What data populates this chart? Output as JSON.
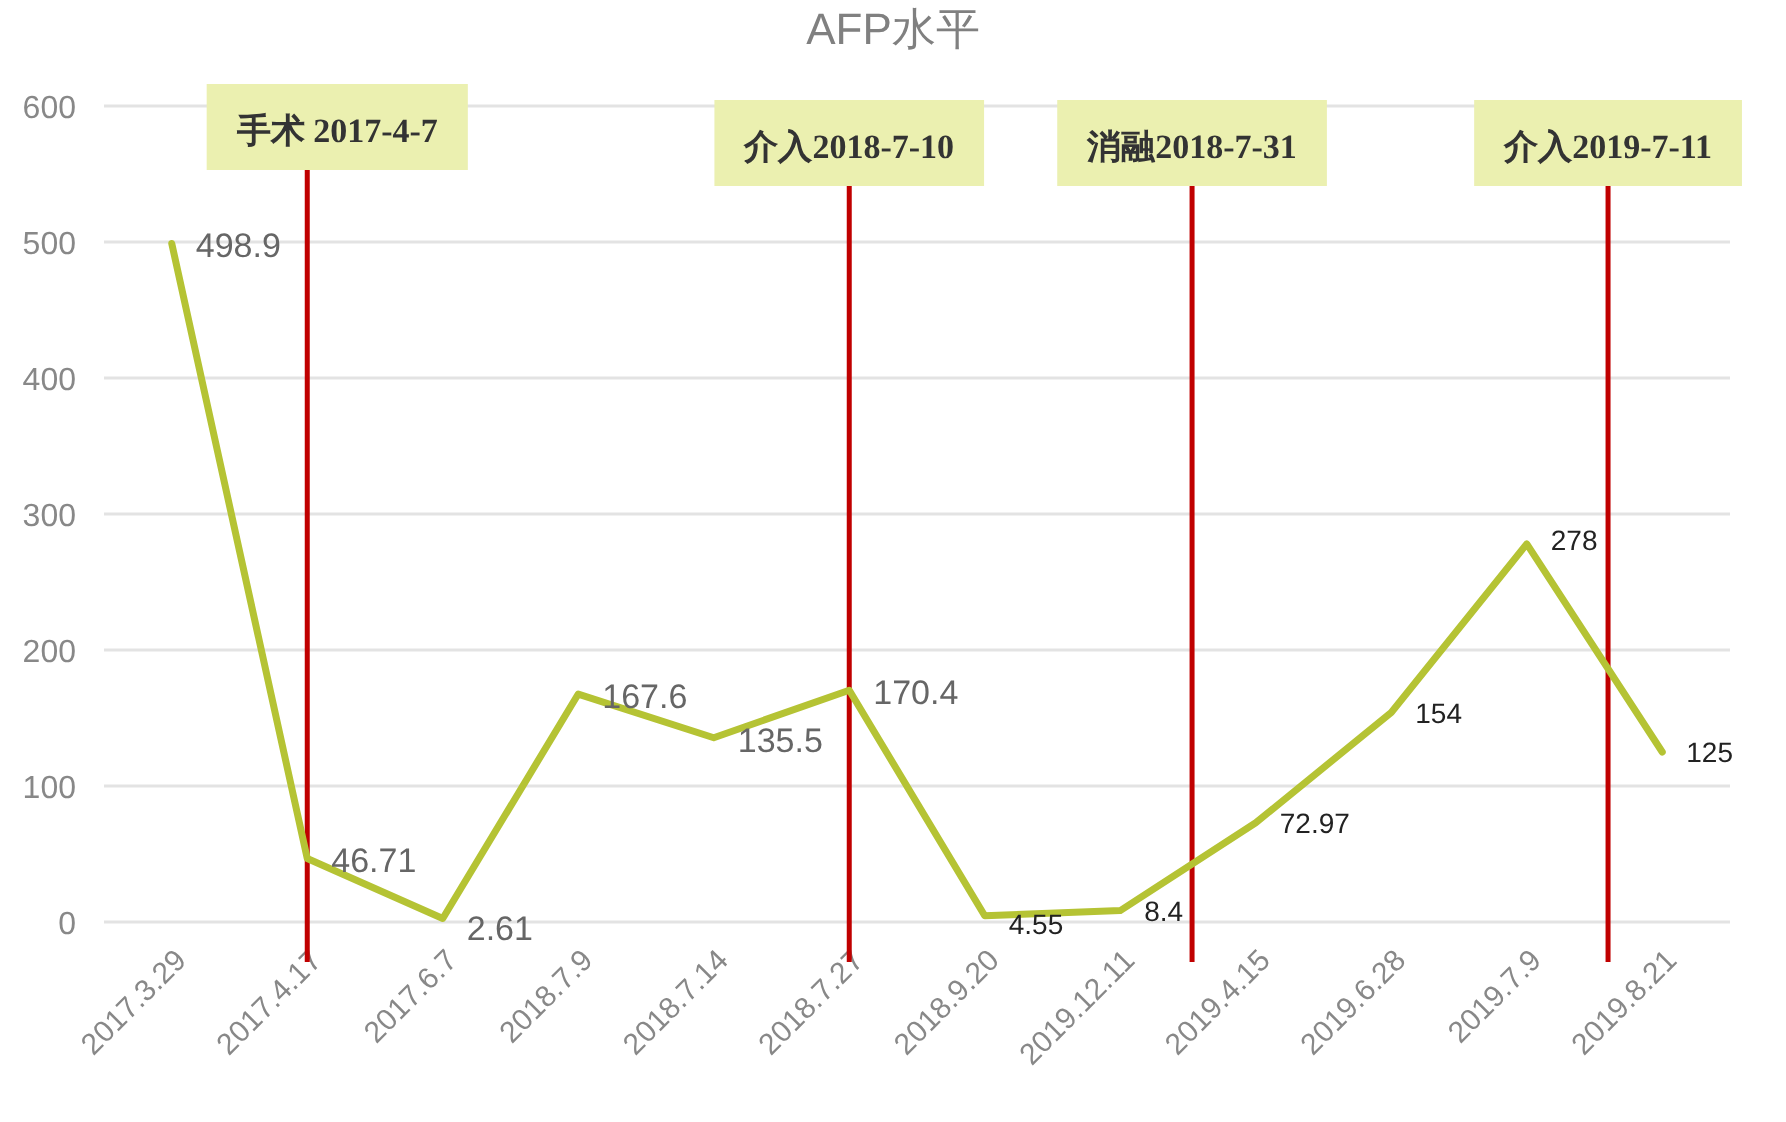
{
  "chart_data": {
    "type": "line",
    "title": "AFP水平",
    "categories": [
      "2017.3.29",
      "2017.4.17",
      "2017.6.7",
      "2018.7.9",
      "2018.7.14",
      "2018.7.27",
      "2018.9.20",
      "2019.12.11",
      "2019.4.15",
      "2019.6.28",
      "2019.7.9",
      "2019.8.21"
    ],
    "series": [
      {
        "color": "#b5c334",
        "values": [
          498.9,
          46.71,
          2.61,
          167.6,
          135.5,
          170.4,
          4.55,
          8.4,
          72.97,
          154,
          278,
          125
        ],
        "value_labels": [
          "498.9",
          "46.71",
          "2.61",
          "167.6",
          "135.5",
          "170.4",
          "4.55",
          "8.4",
          "72.97",
          "154",
          "278",
          "125"
        ]
      }
    ],
    "ylim": [
      0,
      600
    ],
    "yticks": [
      0,
      100,
      200,
      300,
      400,
      500,
      600
    ],
    "grid": "y",
    "data_labels": true,
    "marker": "none",
    "line_style": "solid",
    "ref_lines": [
      {
        "axis": "x",
        "value": "2017.4.17",
        "label": "手术 2017-4-7",
        "color": "#c00000"
      },
      {
        "axis": "x",
        "value": "2018.7.27",
        "label": "介入2018-7-10",
        "color": "#c00000"
      }
    ],
    "annotations": [
      "消融2018-7-31",
      "介入2019-7-11"
    ]
  }
}
